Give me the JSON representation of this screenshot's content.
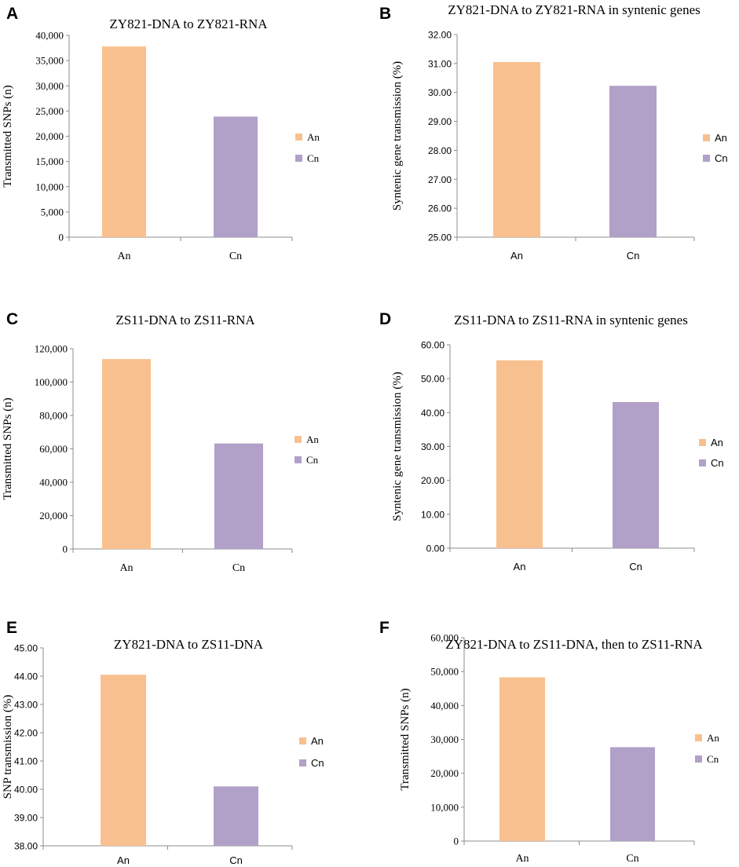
{
  "colors": {
    "An": "#f9c08f",
    "Cn": "#b1a0c8"
  },
  "chart_data": [
    {
      "panel": "A",
      "type": "bar",
      "title": "ZY821-DNA to ZY821-RNA",
      "xlabel": "",
      "ylabel": "Transmitted SNPs (n)",
      "categories": [
        "An",
        "Cn"
      ],
      "values": [
        37800,
        23900
      ],
      "ylim": [
        0,
        40000
      ],
      "yticks": [
        "0",
        "5,000",
        "10,000",
        "15,000",
        "20,000",
        "25,000",
        "30,000",
        "35,000",
        "40,000"
      ],
      "legend": [
        "An",
        "Cn"
      ]
    },
    {
      "panel": "B",
      "type": "bar",
      "title": "ZY821-DNA to ZY821-RNA in syntenic genes",
      "xlabel": "",
      "ylabel": "Syntenic gene transmission (%)",
      "categories": [
        "An",
        "Cn"
      ],
      "values": [
        31.05,
        30.23
      ],
      "ylim": [
        25,
        32
      ],
      "yticks": [
        "25.00",
        "26.00",
        "27.00",
        "28.00",
        "29.00",
        "30.00",
        "31.00",
        "32.00"
      ],
      "legend": [
        "An",
        "Cn"
      ]
    },
    {
      "panel": "C",
      "type": "bar",
      "title": "ZS11-DNA to ZS11-RNA",
      "xlabel": "",
      "ylabel": "Transmitted SNPs (n)",
      "categories": [
        "An",
        "Cn"
      ],
      "values": [
        113800,
        63200
      ],
      "ylim": [
        0,
        120000
      ],
      "yticks": [
        "0",
        "20,000",
        "40,000",
        "60,000",
        "80,000",
        "100,000",
        "120,000"
      ],
      "legend": [
        "An",
        "Cn"
      ]
    },
    {
      "panel": "D",
      "type": "bar",
      "title": "ZS11-DNA to ZS11-RNA in syntenic genes",
      "xlabel": "",
      "ylabel": "Syntenic gene transmission (%)",
      "categories": [
        "An",
        "Cn"
      ],
      "values": [
        55.4,
        43.1
      ],
      "ylim": [
        0,
        60
      ],
      "yticks": [
        "0.00",
        "10.00",
        "20.00",
        "30.00",
        "40.00",
        "50.00",
        "60.00"
      ],
      "legend": [
        "An",
        "Cn"
      ]
    },
    {
      "panel": "E",
      "type": "bar",
      "title": "ZY821-DNA to ZS11-DNA",
      "xlabel": "",
      "ylabel": "SNP transmission (%)",
      "categories": [
        "An",
        "Cn"
      ],
      "values": [
        44.05,
        40.1
      ],
      "ylim": [
        38,
        45
      ],
      "yticks": [
        "38.00",
        "39.00",
        "40.00",
        "41.00",
        "42.00",
        "43.00",
        "44.00",
        "45.00"
      ],
      "legend": [
        "An",
        "Cn"
      ]
    },
    {
      "panel": "F",
      "type": "bar",
      "title": "ZY821-DNA to ZS11-DNA, then to ZS11-RNA",
      "xlabel": "",
      "ylabel": "Transmitted SNPs (n)",
      "categories": [
        "An",
        "Cn"
      ],
      "values": [
        48300,
        27700
      ],
      "ylim": [
        0,
        60000
      ],
      "yticks": [
        "0",
        "10,000",
        "20,000",
        "30,000",
        "40,000",
        "50,000",
        "60,000"
      ],
      "legend": [
        "An",
        "Cn"
      ]
    }
  ]
}
